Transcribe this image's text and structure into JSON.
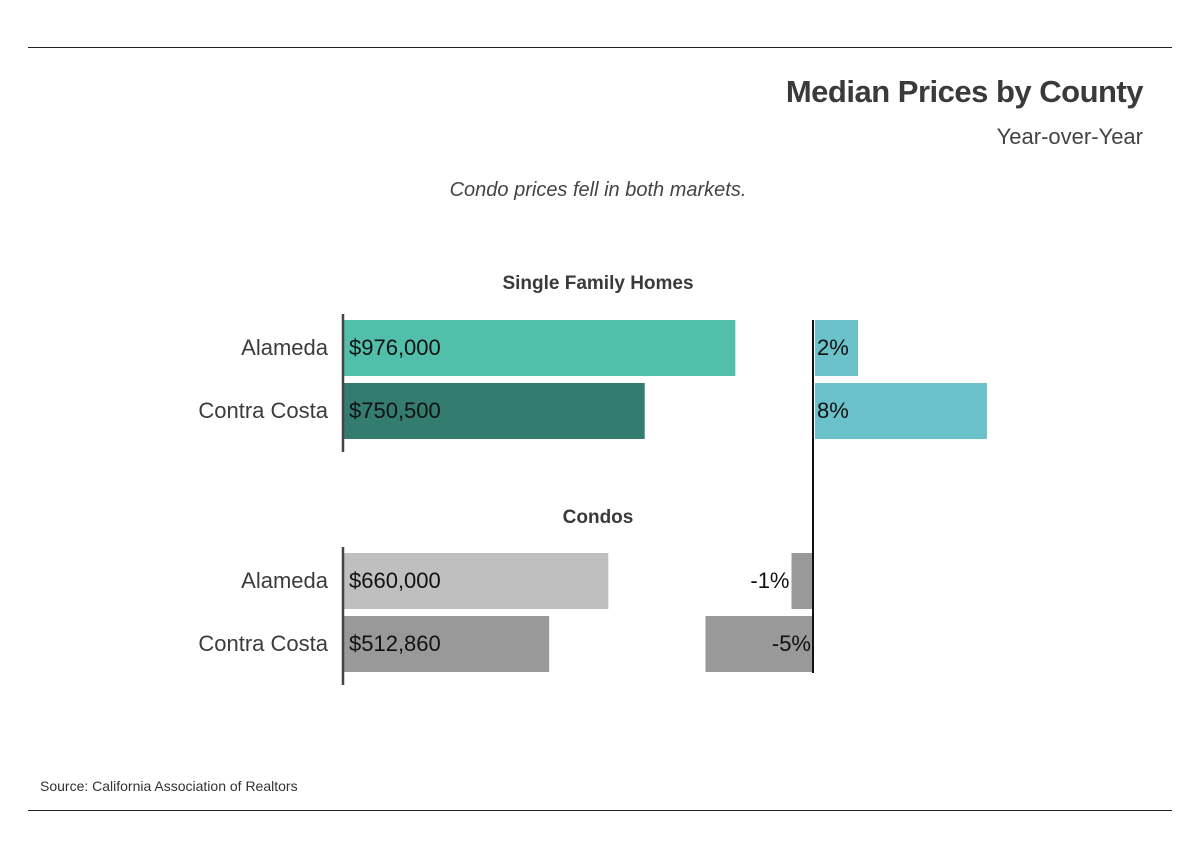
{
  "header": {
    "title": "Median Prices by County",
    "subtitle": "Year-over-Year",
    "headline": "Condo prices fell in both markets."
  },
  "footer": {
    "source": "Source:  California Association of Realtors"
  },
  "chart_data": {
    "type": "bar",
    "orientation": "horizontal",
    "title": "Median Prices by County",
    "subtitle": "Year-over-Year",
    "groups": [
      {
        "name": "Single Family Homes",
        "rows": [
          {
            "label": "Alameda",
            "price": 976000,
            "price_label": "$976,000",
            "change": 2,
            "change_label": "2%",
            "price_color": "#52bfaa",
            "change_color": "#6bc2cb"
          },
          {
            "label": "Contra Costa",
            "price": 750500,
            "price_label": "$750,500",
            "change": 8,
            "change_label": "8%",
            "price_color": "#347c70",
            "change_color": "#6bc2cb"
          }
        ]
      },
      {
        "name": "Condos",
        "rows": [
          {
            "label": "Alameda",
            "price": 660000,
            "price_label": "$660,000",
            "change": -1,
            "change_label": "-1%",
            "price_color": "#bfbfbf",
            "change_color": "#999999"
          },
          {
            "label": "Contra Costa",
            "price": 512860,
            "price_label": "$512,860",
            "change": -5,
            "change_label": "-5%",
            "price_color": "#999999",
            "change_color": "#999999"
          }
        ]
      }
    ],
    "price_axis": {
      "min": 0,
      "max": 1000000
    },
    "change_axis": {
      "min": -5,
      "max": 8
    }
  }
}
